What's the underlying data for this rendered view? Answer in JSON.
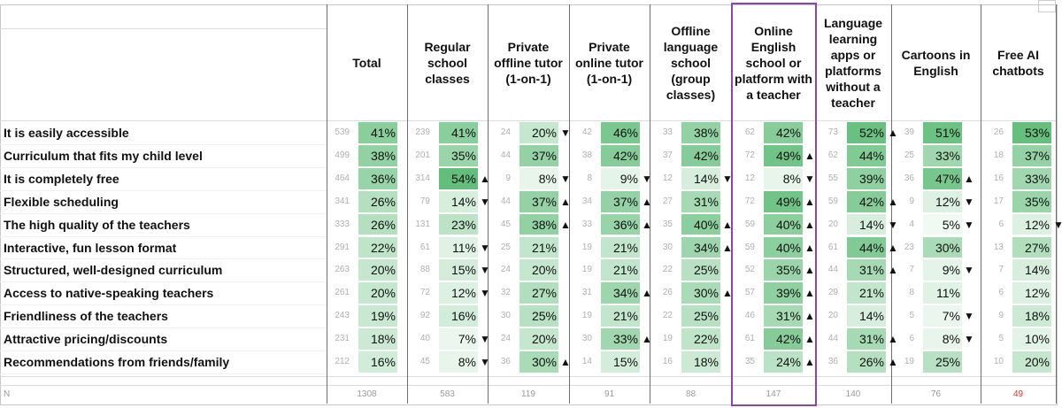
{
  "chart_data": {
    "type": "table",
    "columns": [
      {
        "key": "total",
        "label": "Total",
        "n": "1308"
      },
      {
        "key": "regular",
        "label": "Regular school classes",
        "n": "583"
      },
      {
        "key": "private_offline",
        "label": "Private offline tutor (1-on-1)",
        "n": "119"
      },
      {
        "key": "private_online",
        "label": "Private online tutor (1-on-1)",
        "n": "91"
      },
      {
        "key": "offline_school",
        "label": "Offline language school (group classes)",
        "n": "88"
      },
      {
        "key": "online_school",
        "label": "Online English school or platform with a teacher",
        "n": "147",
        "highlighted": true
      },
      {
        "key": "apps",
        "label": "Language learning apps or platforms without a teacher",
        "n": "140"
      },
      {
        "key": "cartoons",
        "label": "Cartoons in English",
        "n": "76"
      },
      {
        "key": "ai",
        "label": "Free AI chatbots",
        "n": "49",
        "n_color": "#e0312f"
      }
    ],
    "n_label": "N",
    "rows": [
      {
        "label": "It is easily accessible",
        "cells": [
          {
            "n": "539",
            "pct": 41
          },
          {
            "n": "239",
            "pct": 41
          },
          {
            "n": "24",
            "pct": 20,
            "sig": "down"
          },
          {
            "n": "42",
            "pct": 46
          },
          {
            "n": "33",
            "pct": 38
          },
          {
            "n": "62",
            "pct": 42
          },
          {
            "n": "73",
            "pct": 52,
            "sig": "up"
          },
          {
            "n": "39",
            "pct": 51
          },
          {
            "n": "26",
            "pct": 53
          }
        ]
      },
      {
        "label": "Curriculum that fits my child level",
        "cells": [
          {
            "n": "499",
            "pct": 38
          },
          {
            "n": "201",
            "pct": 35
          },
          {
            "n": "44",
            "pct": 37
          },
          {
            "n": "38",
            "pct": 42
          },
          {
            "n": "37",
            "pct": 42
          },
          {
            "n": "72",
            "pct": 49,
            "sig": "up"
          },
          {
            "n": "62",
            "pct": 44
          },
          {
            "n": "25",
            "pct": 33
          },
          {
            "n": "18",
            "pct": 37
          }
        ]
      },
      {
        "label": "It is completely free",
        "cells": [
          {
            "n": "464",
            "pct": 36
          },
          {
            "n": "314",
            "pct": 54,
            "sig": "up"
          },
          {
            "n": "9",
            "pct": 8,
            "sig": "down"
          },
          {
            "n": "8",
            "pct": 9,
            "sig": "down"
          },
          {
            "n": "12",
            "pct": 14,
            "sig": "down"
          },
          {
            "n": "12",
            "pct": 8,
            "sig": "down"
          },
          {
            "n": "55",
            "pct": 39
          },
          {
            "n": "36",
            "pct": 47,
            "sig": "up"
          },
          {
            "n": "16",
            "pct": 33
          }
        ]
      },
      {
        "label": "Flexible scheduling",
        "cells": [
          {
            "n": "341",
            "pct": 26
          },
          {
            "n": "79",
            "pct": 14,
            "sig": "down"
          },
          {
            "n": "44",
            "pct": 37,
            "sig": "up"
          },
          {
            "n": "34",
            "pct": 37,
            "sig": "up"
          },
          {
            "n": "27",
            "pct": 31
          },
          {
            "n": "72",
            "pct": 49,
            "sig": "up"
          },
          {
            "n": "59",
            "pct": 42,
            "sig": "up"
          },
          {
            "n": "9",
            "pct": 12,
            "sig": "down"
          },
          {
            "n": "17",
            "pct": 35
          }
        ]
      },
      {
        "label": "The high quality of the teachers",
        "cells": [
          {
            "n": "333",
            "pct": 26
          },
          {
            "n": "131",
            "pct": 23
          },
          {
            "n": "45",
            "pct": 38,
            "sig": "up"
          },
          {
            "n": "33",
            "pct": 36,
            "sig": "up"
          },
          {
            "n": "35",
            "pct": 40,
            "sig": "up"
          },
          {
            "n": "59",
            "pct": 40,
            "sig": "up"
          },
          {
            "n": "20",
            "pct": 14,
            "sig": "down"
          },
          {
            "n": "4",
            "pct": 5,
            "sig": "down"
          },
          {
            "n": "6",
            "pct": 12,
            "sig": "down"
          }
        ]
      },
      {
        "label": "Interactive, fun lesson format",
        "cells": [
          {
            "n": "291",
            "pct": 22
          },
          {
            "n": "61",
            "pct": 11,
            "sig": "down"
          },
          {
            "n": "25",
            "pct": 21
          },
          {
            "n": "19",
            "pct": 21
          },
          {
            "n": "30",
            "pct": 34,
            "sig": "up"
          },
          {
            "n": "59",
            "pct": 40,
            "sig": "up"
          },
          {
            "n": "61",
            "pct": 44,
            "sig": "up"
          },
          {
            "n": "23",
            "pct": 30
          },
          {
            "n": "13",
            "pct": 27
          }
        ]
      },
      {
        "label": "Structured, well-designed curriculum",
        "cells": [
          {
            "n": "263",
            "pct": 20
          },
          {
            "n": "88",
            "pct": 15,
            "sig": "down"
          },
          {
            "n": "24",
            "pct": 20
          },
          {
            "n": "19",
            "pct": 21
          },
          {
            "n": "22",
            "pct": 25
          },
          {
            "n": "52",
            "pct": 35,
            "sig": "up"
          },
          {
            "n": "44",
            "pct": 31,
            "sig": "up"
          },
          {
            "n": "7",
            "pct": 9,
            "sig": "down"
          },
          {
            "n": "7",
            "pct": 14
          }
        ]
      },
      {
        "label": "Access to native-speaking teachers",
        "cells": [
          {
            "n": "261",
            "pct": 20
          },
          {
            "n": "72",
            "pct": 12,
            "sig": "down"
          },
          {
            "n": "32",
            "pct": 27
          },
          {
            "n": "31",
            "pct": 34,
            "sig": "up"
          },
          {
            "n": "26",
            "pct": 30,
            "sig": "up"
          },
          {
            "n": "57",
            "pct": 39,
            "sig": "up"
          },
          {
            "n": "29",
            "pct": 21
          },
          {
            "n": "8",
            "pct": 11
          },
          {
            "n": "6",
            "pct": 12
          }
        ]
      },
      {
        "label": "Friendliness of the teachers",
        "cells": [
          {
            "n": "243",
            "pct": 19
          },
          {
            "n": "92",
            "pct": 16
          },
          {
            "n": "30",
            "pct": 25
          },
          {
            "n": "19",
            "pct": 21
          },
          {
            "n": "22",
            "pct": 25
          },
          {
            "n": "46",
            "pct": 31,
            "sig": "up"
          },
          {
            "n": "20",
            "pct": 14
          },
          {
            "n": "5",
            "pct": 7,
            "sig": "down"
          },
          {
            "n": "9",
            "pct": 18
          }
        ]
      },
      {
        "label": "Attractive pricing/discounts",
        "cells": [
          {
            "n": "231",
            "pct": 18
          },
          {
            "n": "40",
            "pct": 7,
            "sig": "down"
          },
          {
            "n": "24",
            "pct": 20
          },
          {
            "n": "30",
            "pct": 33,
            "sig": "up"
          },
          {
            "n": "19",
            "pct": 22
          },
          {
            "n": "61",
            "pct": 42,
            "sig": "up"
          },
          {
            "n": "44",
            "pct": 31,
            "sig": "up"
          },
          {
            "n": "6",
            "pct": 8,
            "sig": "down"
          },
          {
            "n": "5",
            "pct": 10
          }
        ]
      },
      {
        "label": "Recommendations from friends/family",
        "cells": [
          {
            "n": "212",
            "pct": 16
          },
          {
            "n": "45",
            "pct": 8,
            "sig": "down"
          },
          {
            "n": "36",
            "pct": 30,
            "sig": "up"
          },
          {
            "n": "14",
            "pct": 15
          },
          {
            "n": "16",
            "pct": 18
          },
          {
            "n": "35",
            "pct": 24,
            "sig": "up"
          },
          {
            "n": "36",
            "pct": 26,
            "sig": "up"
          },
          {
            "n": "19",
            "pct": 25
          },
          {
            "n": "10",
            "pct": 20
          }
        ]
      }
    ],
    "colors": {
      "bar_max": "#63be7b",
      "bar_min": "#ffffff",
      "highlight_border": "#8e44ad",
      "n_alert": "#e0312f"
    },
    "sig_symbols": {
      "up": "▲",
      "down": "▼"
    }
  }
}
